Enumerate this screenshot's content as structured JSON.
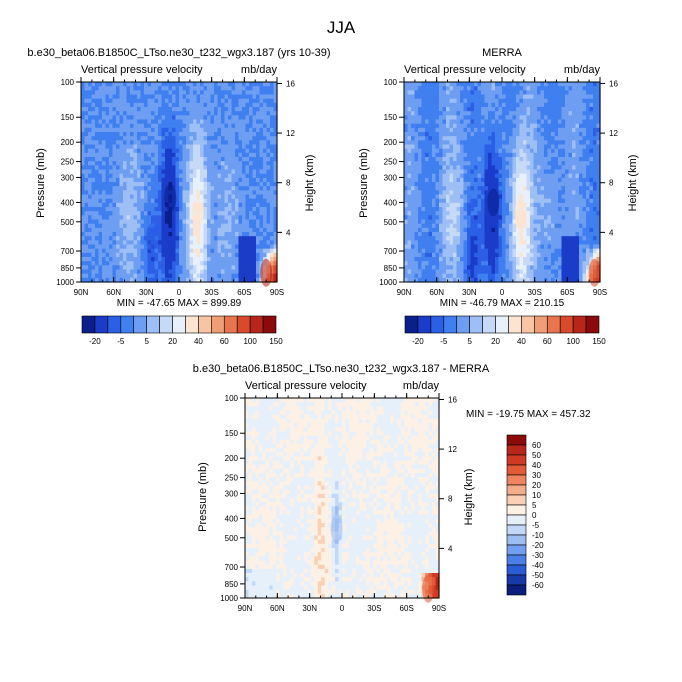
{
  "figure": {
    "title": "JJA",
    "colors": {
      "frame": "#000000",
      "text": "#000000"
    }
  },
  "chart_data": [
    {
      "type": "heatmap",
      "title": "b.e30_beta06.B1850C_LTso.ne30_t232_wgx3.187 (yrs 10-39)",
      "subtitle": "Vertical pressure velocity",
      "units": "mb/day",
      "ylabel": "Pressure (mb)",
      "ylabel_right": "Height (km)",
      "x_ticks": [
        "90N",
        "60N",
        "30N",
        "0",
        "30S",
        "60S",
        "90S"
      ],
      "x_range": [
        90,
        -90
      ],
      "y_ticks": [
        100,
        150,
        200,
        250,
        300,
        400,
        500,
        700,
        850,
        1000
      ],
      "y_range": [
        100,
        1000
      ],
      "y_scale": "log",
      "height_ticks_km": [
        4,
        8,
        12,
        16
      ],
      "stats": "MIN = -47.65   MAX = 899.89",
      "colorbar_labels": [
        "-20",
        "-5",
        "5",
        "20",
        "40",
        "60",
        "100",
        "150"
      ],
      "colorbar_orientation": "horizontal",
      "features": [
        {
          "lat": 8,
          "p": 380,
          "value": -35
        },
        {
          "lat": 25,
          "p": 600,
          "value": -15
        },
        {
          "lat": -17,
          "p": 450,
          "value": 15
        },
        {
          "lat": -80,
          "p": 900,
          "value": 120
        }
      ]
    },
    {
      "type": "heatmap",
      "title": "MERRA",
      "subtitle": "Vertical pressure velocity",
      "units": "mb/day",
      "ylabel": "Pressure (mb)",
      "ylabel_right": "Height (km)",
      "x_ticks": [
        "90N",
        "60N",
        "30N",
        "0",
        "30S",
        "60S",
        "90S"
      ],
      "x_range": [
        90,
        -90
      ],
      "y_ticks": [
        100,
        150,
        200,
        250,
        300,
        400,
        500,
        700,
        850,
        1000
      ],
      "y_range": [
        100,
        1000
      ],
      "y_scale": "log",
      "height_ticks_km": [
        4,
        8,
        12,
        16
      ],
      "stats": "MIN = -46.79   MAX = 210.15",
      "colorbar_labels": [
        "-20",
        "-5",
        "5",
        "20",
        "40",
        "60",
        "100",
        "150"
      ],
      "colorbar_orientation": "horizontal",
      "features": [
        {
          "lat": 8,
          "p": 400,
          "value": -35
        },
        {
          "lat": -17,
          "p": 450,
          "value": 15
        },
        {
          "lat": -85,
          "p": 900,
          "value": 100
        }
      ]
    },
    {
      "type": "heatmap",
      "title": "b.e30_beta06.B1850C_LTso.ne30_t232_wgx3.187 - MERRA",
      "subtitle": "Vertical pressure velocity",
      "units": "mb/day",
      "ylabel": "Pressure (mb)",
      "ylabel_right": "Height (km)",
      "x_ticks": [
        "90N",
        "60N",
        "30N",
        "0",
        "30S",
        "60S",
        "90S"
      ],
      "x_range": [
        90,
        -90
      ],
      "y_ticks": [
        100,
        150,
        200,
        250,
        300,
        400,
        500,
        700,
        850,
        1000
      ],
      "y_range": [
        100,
        1000
      ],
      "y_scale": "log",
      "height_ticks_km": [
        4,
        8,
        12,
        16
      ],
      "stats": "MIN = -19.75   MAX = 457.32",
      "colorbar_labels": [
        "60",
        "50",
        "40",
        "30",
        "20",
        "10",
        "5",
        "0",
        "-5",
        "-10",
        "-20",
        "-30",
        "-40",
        "-50",
        "-60"
      ],
      "colorbar_orientation": "vertical",
      "features": [
        {
          "lat": 5,
          "p": 450,
          "value": -15
        },
        {
          "lat": -80,
          "p": 900,
          "value": 40
        }
      ]
    }
  ]
}
